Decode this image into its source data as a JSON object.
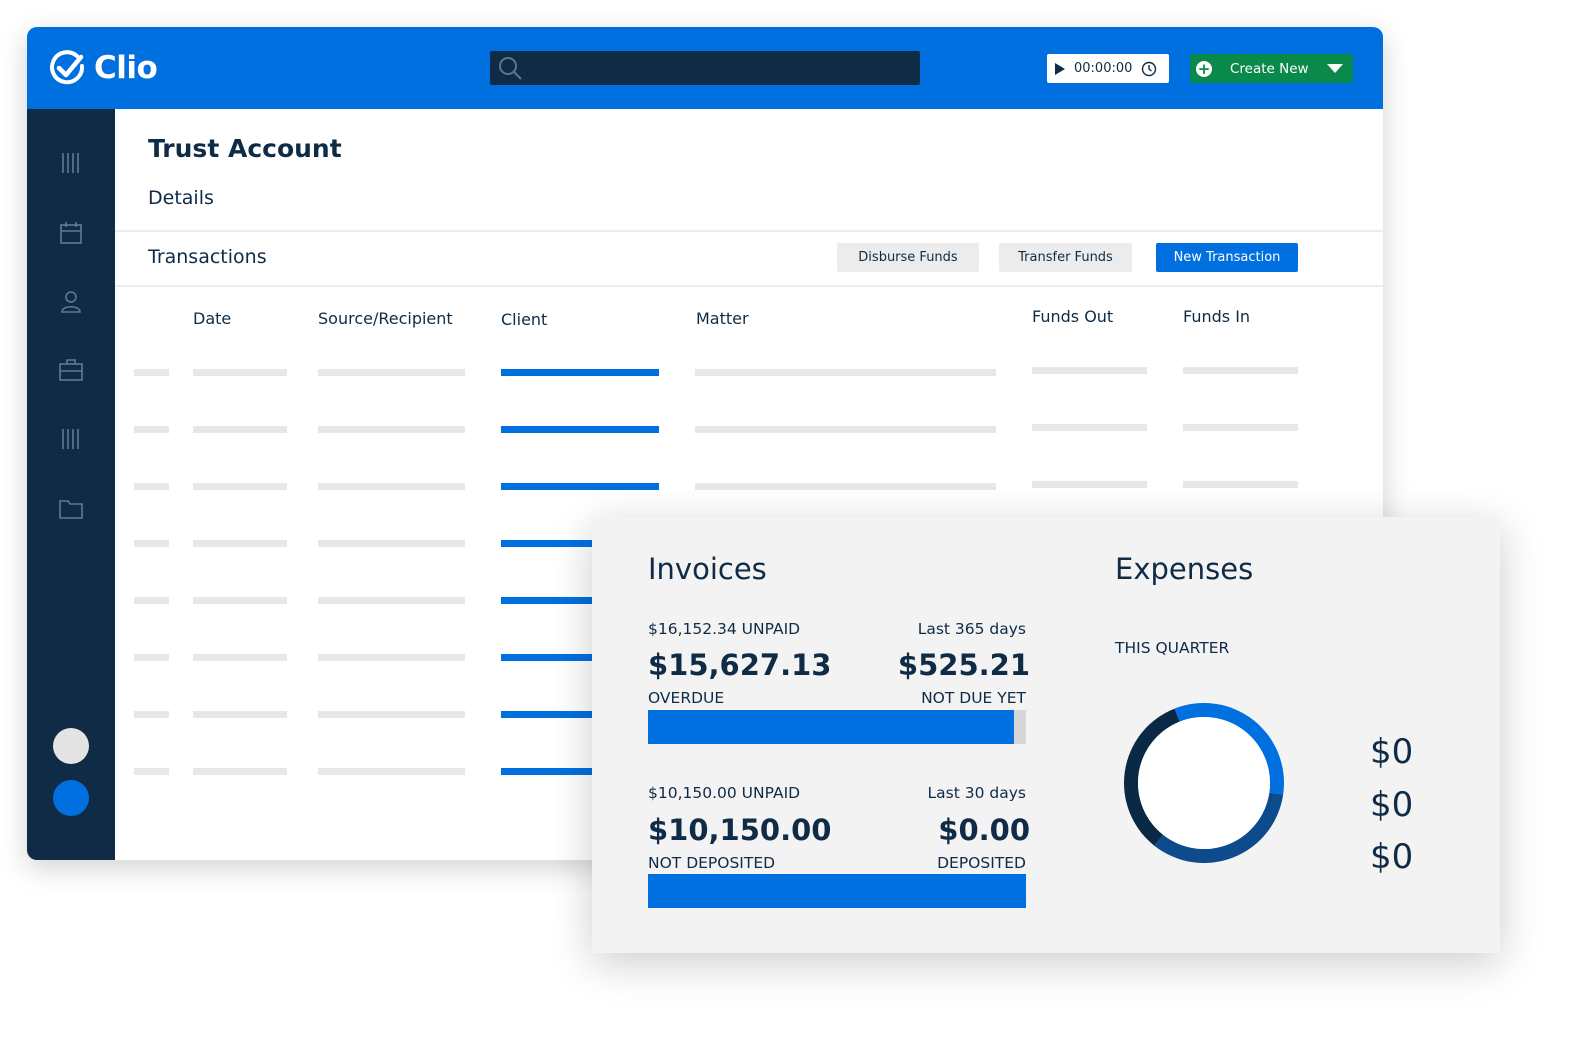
{
  "app": {
    "logo_text": "Clio",
    "search": {
      "placeholder": ""
    },
    "timer": {
      "value": "00:00:00"
    },
    "create_new": {
      "label": "Create New"
    }
  },
  "sidebar": {
    "icons": [
      "matters-icon",
      "calendar-icon",
      "contacts-icon",
      "briefcase-icon",
      "activities-icon",
      "documents-icon"
    ]
  },
  "page": {
    "title": "Trust Account",
    "details_tab": "Details",
    "transactions_label": "Transactions",
    "buttons": {
      "disburse": "Disburse Funds",
      "transfer": "Transfer Funds",
      "new_transaction": "New Transaction"
    },
    "columns": [
      "Date",
      "Source/Recipient",
      "Client",
      "Matter",
      "Funds Out",
      "Funds In"
    ]
  },
  "card": {
    "invoices": {
      "heading": "Invoices",
      "unpaid_label": "$16,152.34 UNPAID",
      "period_label": "Last 365 days",
      "overdue_value": "$15,627.13",
      "overdue_label": "OVERDUE",
      "not_due_value": "$525.21",
      "not_due_label": "NOT DUE YET",
      "progress_fraction": 0.9675
    },
    "deposits": {
      "unpaid_label": "$10,150.00 UNPAID",
      "period_label": "Last 30 days",
      "not_deposited_value": "$10,150.00",
      "not_deposited_label": "NOT DEPOSITED",
      "deposited_value": "$0.00",
      "deposited_label": "DEPOSITED",
      "progress_fraction": 1.0
    },
    "expenses": {
      "heading": "Expenses",
      "period_label": "THIS QUARTER",
      "values": [
        "$0",
        "$0",
        "$0"
      ],
      "donut_colors": [
        "#0070e0",
        "#0d4b8c",
        "#0a2944"
      ]
    }
  }
}
